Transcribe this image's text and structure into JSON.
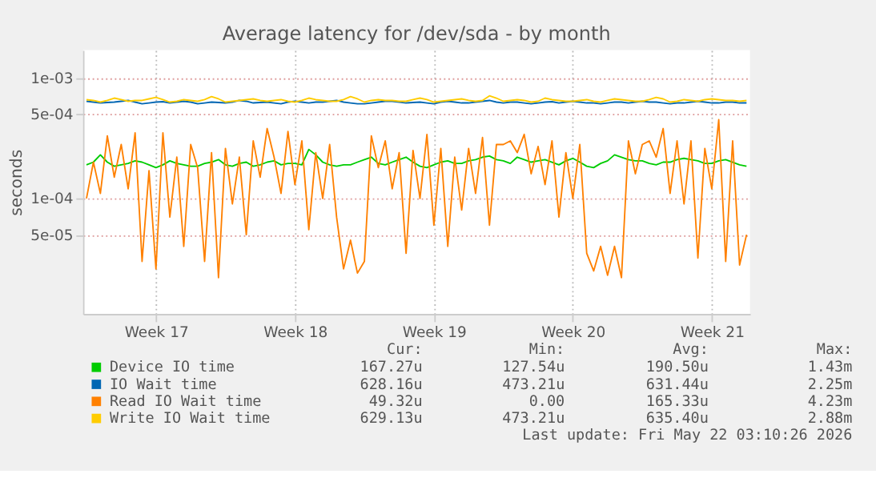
{
  "chart_data": {
    "type": "line",
    "title": "Average latency for /dev/sda - by month",
    "ylabel": "seconds",
    "log": "y",
    "grid": true,
    "legend": "bottom",
    "categories": [
      null,
      null,
      null,
      null,
      null,
      null,
      null,
      null,
      null,
      null,
      "Week 17",
      null,
      null,
      null,
      null,
      null,
      null,
      null,
      null,
      null,
      null,
      null,
      null,
      null,
      null,
      null,
      null,
      null,
      null,
      null,
      "Week 18",
      null,
      null,
      null,
      null,
      null,
      null,
      null,
      null,
      null,
      null,
      null,
      null,
      null,
      null,
      null,
      null,
      null,
      null,
      null,
      "Week 19",
      null,
      null,
      null,
      null,
      null,
      null,
      null,
      null,
      null,
      null,
      null,
      null,
      null,
      null,
      null,
      null,
      null,
      null,
      null,
      "Week 20",
      null,
      null,
      null,
      null,
      null,
      null,
      null,
      null,
      null,
      null,
      null,
      null,
      null,
      null,
      null,
      null,
      null,
      null,
      null,
      "Week 21",
      null,
      null,
      null,
      null,
      null
    ],
    "ylim": [
      1.1e-05,
      0.0017
    ],
    "yticks": [
      {
        "value": 5e-05,
        "label": "5e-05"
      },
      {
        "value": 0.0001,
        "label": "1e-04"
      },
      {
        "value": 0.0005,
        "label": "5e-04"
      },
      {
        "value": 0.001,
        "label": "1e-03"
      }
    ],
    "annotations": [
      "Cur:",
      "Min:",
      "Avg:",
      "Max:",
      "167.27u",
      "127.54u",
      "190.50u",
      "1.43m",
      "628.16u",
      "473.21u",
      "631.44u",
      "2.25m",
      "49.32u",
      "0.00",
      "165.33u",
      "4.23m",
      "629.13u",
      "473.21u",
      "635.40u",
      "2.88m",
      "Last update: Fri May 22 03:10:26 2026"
    ],
    "series": [
      {
        "name": "Device IO time",
        "color": "#00cc00",
        "values": [
          0.00019,
          0.0002,
          0.00023,
          0.0002,
          0.000185,
          0.00019,
          0.000195,
          0.000205,
          0.0002,
          0.00019,
          0.00018,
          0.00019,
          0.000205,
          0.000195,
          0.00019,
          0.000185,
          0.000185,
          0.000195,
          0.0002,
          0.00021,
          0.00019,
          0.000185,
          0.000195,
          0.0002,
          0.000185,
          0.00019,
          0.0002,
          0.000205,
          0.00019,
          0.000195,
          0.000195,
          0.00019,
          0.000255,
          0.00023,
          0.0002,
          0.00019,
          0.000185,
          0.00019,
          0.00019,
          0.0002,
          0.00021,
          0.00022,
          0.000195,
          0.00019,
          0.0002,
          0.00021,
          0.00022,
          0.0002,
          0.000185,
          0.00018,
          0.00019,
          0.0002,
          0.000205,
          0.000195,
          0.000195,
          0.000205,
          0.00021,
          0.00022,
          0.000225,
          0.00021,
          0.000205,
          0.000195,
          0.00022,
          0.00021,
          0.0002,
          0.000205,
          0.00021,
          0.0002,
          0.00019,
          0.000205,
          0.000215,
          0.0002,
          0.000185,
          0.00018,
          0.000195,
          0.000205,
          0.00023,
          0.00022,
          0.00021,
          0.000205,
          0.000205,
          0.000195,
          0.00019,
          0.0002,
          0.0002,
          0.00021,
          0.000215,
          0.00021,
          0.000205,
          0.000195,
          0.000195,
          0.000205,
          0.00021,
          0.0002,
          0.00019,
          0.000185
        ]
      },
      {
        "name": "IO Wait time",
        "color": "#0066b3",
        "values": [
          0.00064,
          0.00063,
          0.00062,
          0.000625,
          0.00063,
          0.00064,
          0.00065,
          0.00063,
          0.00061,
          0.00062,
          0.00063,
          0.000635,
          0.00062,
          0.00063,
          0.00064,
          0.00063,
          0.00061,
          0.00062,
          0.00063,
          0.000625,
          0.00062,
          0.00063,
          0.00065,
          0.00064,
          0.00062,
          0.000625,
          0.00063,
          0.00062,
          0.00061,
          0.00063,
          0.00064,
          0.00063,
          0.00062,
          0.00063,
          0.00063,
          0.00064,
          0.00065,
          0.00063,
          0.00062,
          0.00061,
          0.00061,
          0.00062,
          0.00063,
          0.00064,
          0.00064,
          0.00063,
          0.00062,
          0.000625,
          0.00063,
          0.00062,
          0.00061,
          0.00063,
          0.00064,
          0.00063,
          0.00062,
          0.00062,
          0.00063,
          0.00064,
          0.00065,
          0.00063,
          0.00062,
          0.00063,
          0.00063,
          0.00062,
          0.00061,
          0.00062,
          0.00063,
          0.000635,
          0.00062,
          0.00063,
          0.00064,
          0.00063,
          0.00062,
          0.00062,
          0.00061,
          0.00062,
          0.00063,
          0.00063,
          0.00062,
          0.00063,
          0.00064,
          0.00063,
          0.00063,
          0.00062,
          0.00061,
          0.00062,
          0.00062,
          0.00063,
          0.00064,
          0.00063,
          0.00062,
          0.00062,
          0.00063,
          0.00063,
          0.00062,
          0.00062
        ]
      },
      {
        "name": "Read IO Wait time",
        "color": "#ff8000",
        "values": [
          0.0001,
          0.0002,
          0.00011,
          0.00033,
          0.00015,
          0.00028,
          0.00012,
          0.00035,
          3e-05,
          0.00017,
          2.6e-05,
          0.00035,
          7e-05,
          0.00022,
          4e-05,
          0.00028,
          0.00018,
          3e-05,
          0.00024,
          2.2e-05,
          0.00026,
          9e-05,
          0.00022,
          5e-05,
          0.0003,
          0.00015,
          0.00038,
          0.00022,
          0.00011,
          0.00036,
          0.00013,
          0.0003,
          5.5e-05,
          0.00024,
          0.0001,
          0.00028,
          7e-05,
          2.6e-05,
          4.5e-05,
          2.4e-05,
          3e-05,
          0.00033,
          0.00018,
          0.0003,
          0.00012,
          0.00024,
          3.5e-05,
          0.00025,
          0.0001,
          0.00034,
          6e-05,
          0.00026,
          4e-05,
          0.00022,
          8e-05,
          0.00026,
          0.00011,
          0.00032,
          6e-05,
          0.00028,
          0.00028,
          0.0003,
          0.00024,
          0.00034,
          0.00016,
          0.00027,
          0.00013,
          0.0003,
          7e-05,
          0.00024,
          0.0001,
          0.00028,
          3.5e-05,
          2.5e-05,
          4e-05,
          2.3e-05,
          4e-05,
          2.2e-05,
          0.0003,
          0.00016,
          0.00028,
          0.0003,
          0.00022,
          0.00038,
          0.00011,
          0.0003,
          9e-05,
          0.0003,
          3.2e-05,
          0.00026,
          0.00012,
          0.00045,
          3e-05,
          0.0003,
          2.8e-05,
          5e-05
        ]
      },
      {
        "name": "Write IO Wait time",
        "color": "#ffcc00",
        "values": [
          0.00066,
          0.00065,
          0.00063,
          0.00065,
          0.00068,
          0.00066,
          0.00064,
          0.00065,
          0.00065,
          0.00067,
          0.00069,
          0.00066,
          0.00063,
          0.00064,
          0.00066,
          0.00065,
          0.00064,
          0.00066,
          0.0007,
          0.00067,
          0.00063,
          0.00064,
          0.00065,
          0.00066,
          0.00067,
          0.00065,
          0.00064,
          0.00065,
          0.00066,
          0.00064,
          0.00063,
          0.00065,
          0.00068,
          0.00066,
          0.00065,
          0.00064,
          0.00064,
          0.00066,
          0.0007,
          0.00067,
          0.00063,
          0.00065,
          0.00066,
          0.00065,
          0.00065,
          0.00064,
          0.00064,
          0.00066,
          0.00068,
          0.00066,
          0.00063,
          0.00064,
          0.00065,
          0.00066,
          0.00067,
          0.00065,
          0.00064,
          0.00065,
          0.00071,
          0.00068,
          0.00064,
          0.00065,
          0.00066,
          0.00065,
          0.00063,
          0.00064,
          0.00068,
          0.00066,
          0.00065,
          0.00064,
          0.00064,
          0.00065,
          0.00066,
          0.00064,
          0.00063,
          0.00065,
          0.00067,
          0.00066,
          0.00065,
          0.00064,
          0.00064,
          0.00066,
          0.00069,
          0.00067,
          0.00063,
          0.00064,
          0.00066,
          0.00065,
          0.00064,
          0.00066,
          0.00067,
          0.00066,
          0.00065,
          0.00065,
          0.00064,
          0.00065
        ]
      }
    ]
  }
}
